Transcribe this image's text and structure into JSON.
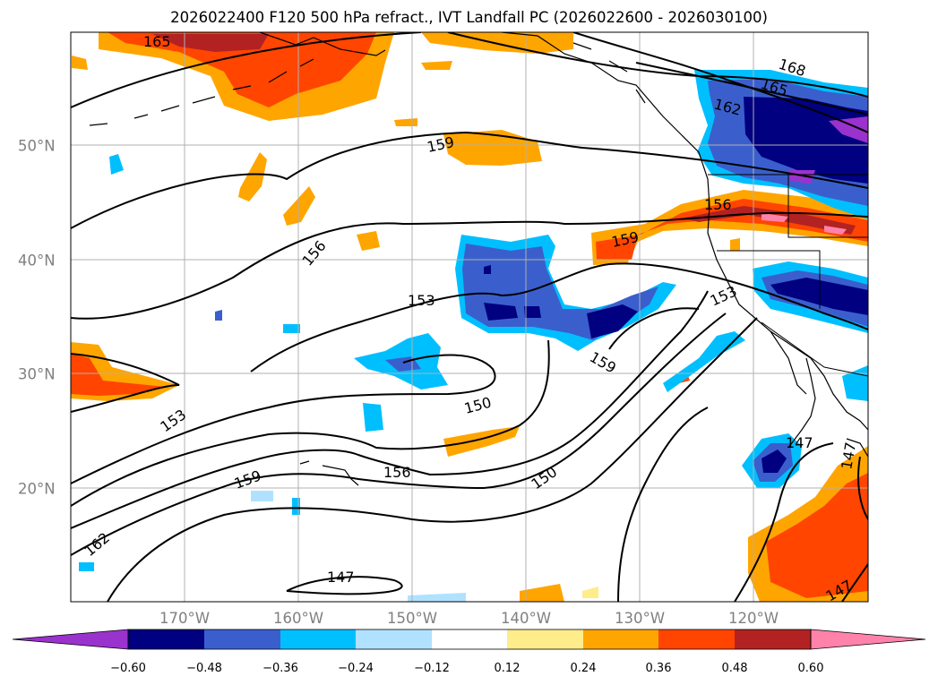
{
  "title": "2026022400 F120 500 hPa refract., IVT Landfall PC (2026022600 - 2026030100)",
  "lon_labels": [
    "170°W",
    "160°W",
    "150°W",
    "140°W",
    "130°W",
    "120°W"
  ],
  "lat_labels": [
    "50°N",
    "40°N",
    "30°N",
    "20°N"
  ],
  "contour_labels": [
    "165",
    "168",
    "165",
    "162",
    "159",
    "156",
    "159",
    "156",
    "153",
    "153",
    "159",
    "150",
    "153",
    "156",
    "159",
    "150",
    "147",
    "162",
    "147",
    "147",
    "147"
  ],
  "colorbar": {
    "ticks": [
      "−0.60",
      "−0.48",
      "−0.36",
      "−0.24",
      "−0.12",
      "0.12",
      "0.24",
      "0.36",
      "0.48",
      "0.60"
    ],
    "colors": [
      "#9a32cd",
      "#000080",
      "#3a5fcd",
      "#00bfff",
      "#b0e2ff",
      "#ffffff",
      "#ffec8b",
      "#ffa500",
      "#ff4500",
      "#b22222",
      "#ff82ab"
    ]
  }
}
